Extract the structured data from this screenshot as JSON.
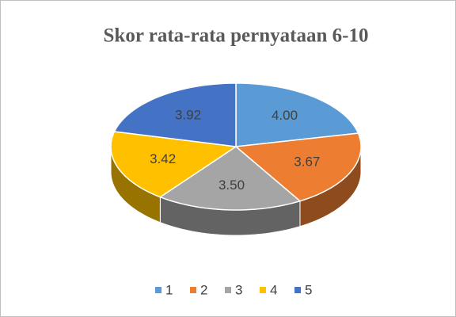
{
  "chart_data": {
    "type": "pie3d",
    "title": "Skor rata-rata pernyataan 6-10",
    "categories": [
      "1",
      "2",
      "3",
      "4",
      "5"
    ],
    "values": [
      4.0,
      3.67,
      3.5,
      3.42,
      3.92
    ],
    "value_labels": [
      "4.00",
      "3.67",
      "3.50",
      "3.42",
      "3.92"
    ],
    "colors": [
      "#5b9bd5",
      "#ed7d31",
      "#a5a5a5",
      "#ffc000",
      "#4472c4"
    ],
    "legend": "bottom"
  }
}
